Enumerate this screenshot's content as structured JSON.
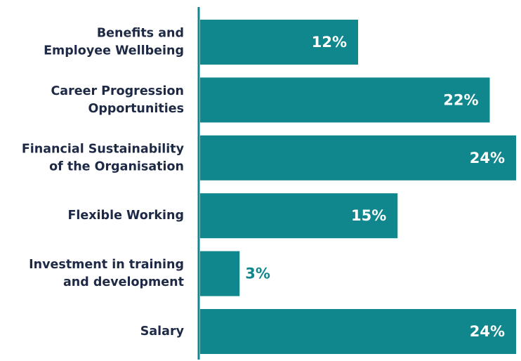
{
  "chart_data": {
    "type": "barh",
    "categories": [
      [
        "Benefits and",
        "Employee Wellbeing"
      ],
      [
        "Career Progression",
        "Opportunities"
      ],
      [
        "Financial Sustainability",
        "of the Organisation"
      ],
      [
        "Flexible Working"
      ],
      [
        "Investment in training",
        "and development"
      ],
      [
        "Salary"
      ]
    ],
    "values": [
      12,
      22,
      24,
      15,
      3,
      24
    ],
    "value_labels": [
      "12%",
      "22%",
      "24%",
      "15%",
      "3%",
      "24%"
    ],
    "color": "#0f878d"
  }
}
